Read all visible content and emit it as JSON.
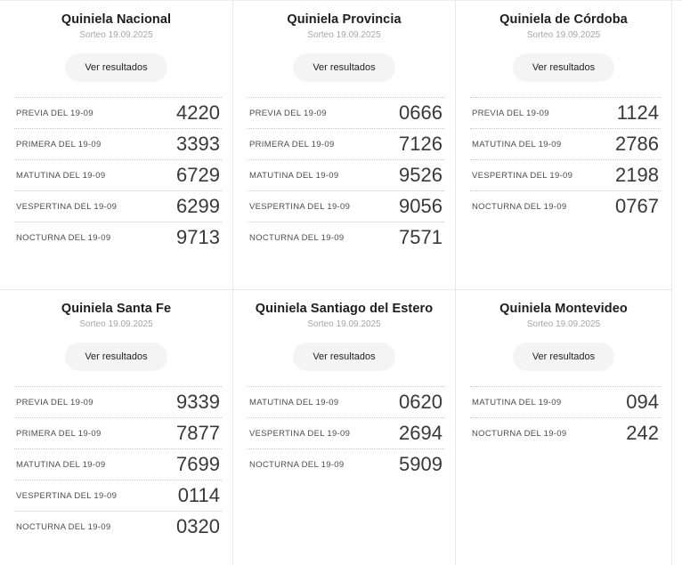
{
  "colors": {
    "background": "#ffffff",
    "card_border": "#e8e8e8",
    "row_divider_dotted": "#c9c9c9",
    "title_text": "#1d1d1d",
    "subtitle_text": "#a6a6a6",
    "button_background": "#f4f4f4",
    "button_text": "#222222",
    "label_text": "#4c4c4c",
    "value_text": "#383838"
  },
  "cards": [
    {
      "title": "Quiniela Nacional",
      "subtitle": "Sorteo 19.09.2025",
      "button_label": "Ver resultados",
      "rows": [
        {
          "label": "PREVIA DEL 19-09",
          "value": "4220"
        },
        {
          "label": "PRIMERA DEL 19-09",
          "value": "3393"
        },
        {
          "label": "MATUTINA DEL 19-09",
          "value": "6729"
        },
        {
          "label": "VESPERTINA DEL 19-09",
          "value": "6299"
        },
        {
          "label": "NOCTURNA DEL 19-09",
          "value": "9713"
        }
      ]
    },
    {
      "title": "Quiniela Provincia",
      "subtitle": "Sorteo 19.09.2025",
      "button_label": "Ver resultados",
      "rows": [
        {
          "label": "PREVIA DEL 19-09",
          "value": "0666"
        },
        {
          "label": "PRIMERA DEL 19-09",
          "value": "7126"
        },
        {
          "label": "MATUTINA DEL 19-09",
          "value": "9526"
        },
        {
          "label": "VESPERTINA DEL 19-09",
          "value": "9056"
        },
        {
          "label": "NOCTURNA DEL 19-09",
          "value": "7571"
        }
      ]
    },
    {
      "title": "Quiniela de Córdoba",
      "subtitle": "Sorteo 19.09.2025",
      "button_label": "Ver resultados",
      "rows": [
        {
          "label": "PREVIA DEL 19-09",
          "value": "1124"
        },
        {
          "label": "MATUTINA DEL 19-09",
          "value": "2786"
        },
        {
          "label": "VESPERTINA DEL 19-09",
          "value": "2198"
        },
        {
          "label": "NOCTURNA DEL 19-09",
          "value": "0767"
        }
      ]
    },
    {
      "title": "Quiniela Santa Fe",
      "subtitle": "Sorteo 19.09.2025",
      "button_label": "Ver resultados",
      "rows": [
        {
          "label": "PREVIA DEL 19-09",
          "value": "9339"
        },
        {
          "label": "PRIMERA DEL 19-09",
          "value": "7877"
        },
        {
          "label": "MATUTINA DEL 19-09",
          "value": "7699"
        },
        {
          "label": "VESPERTINA DEL 19-09",
          "value": "0114"
        },
        {
          "label": "NOCTURNA DEL 19-09",
          "value": "0320"
        }
      ]
    },
    {
      "title": "Quiniela Santiago del Estero",
      "subtitle": "Sorteo 19.09.2025",
      "button_label": "Ver resultados",
      "rows": [
        {
          "label": "MATUTINA DEL 19-09",
          "value": "0620"
        },
        {
          "label": "VESPERTINA DEL 19-09",
          "value": "2694"
        },
        {
          "label": "NOCTURNA DEL 19-09",
          "value": "5909"
        }
      ]
    },
    {
      "title": "Quiniela Montevideo",
      "subtitle": "Sorteo 19.09.2025",
      "button_label": "Ver resultados",
      "rows": [
        {
          "label": "MATUTINA DEL 19-09",
          "value": "094"
        },
        {
          "label": "NOCTURNA DEL 19-09",
          "value": "242"
        }
      ]
    }
  ]
}
